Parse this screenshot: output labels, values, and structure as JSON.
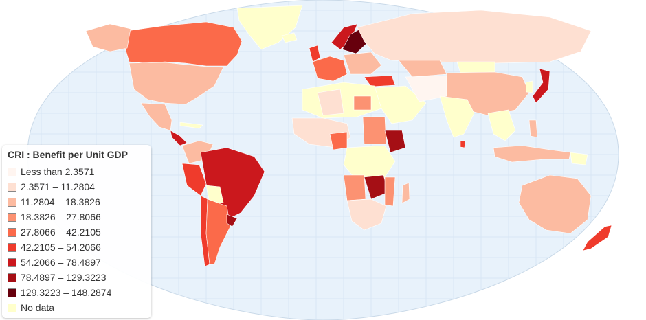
{
  "map": {
    "ocean_color": "#e8f2fb",
    "graticule_color": "#d3e3f2",
    "no_data_color": "#ffffcc"
  },
  "legend": {
    "title": "CRI : Benefit per Unit GDP",
    "items": [
      {
        "label": "Less than 2.3571",
        "color": "#fff5f0"
      },
      {
        "label": "2.3571 – 11.2804",
        "color": "#fee0d2"
      },
      {
        "label": "11.2804 – 18.3826",
        "color": "#fcbba1"
      },
      {
        "label": "18.3826 – 27.8066",
        "color": "#fc9272"
      },
      {
        "label": "27.8066 – 42.2105",
        "color": "#fb6a4a"
      },
      {
        "label": "42.2105 – 54.2066",
        "color": "#ef3b2c"
      },
      {
        "label": "54.2066 – 78.4897",
        "color": "#cb181d"
      },
      {
        "label": "78.4897 – 129.3223",
        "color": "#a50f15"
      },
      {
        "label": "129.3223 – 148.2874",
        "color": "#67000d"
      },
      {
        "label": "No data",
        "color": "#ffffcc"
      }
    ]
  }
}
